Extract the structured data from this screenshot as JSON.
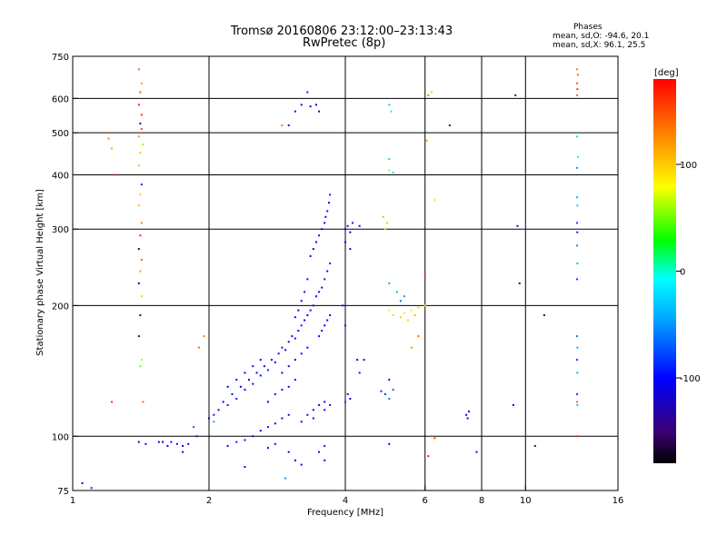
{
  "header": {
    "title_line1": "Tromsø 20160806 23:12:00–23:13:43",
    "title_line2": "RwPretec (8p)",
    "phases_title": "Phases",
    "phases_o": "mean, sd,O:  -94.6, 20.1",
    "phases_x": "mean, sd,X:  96.1, 25.5"
  },
  "chart_data": {
    "type": "scatter",
    "xlabel": "Frequency [MHz]",
    "ylabel": "Stationary phase Virtual Height [km]",
    "x_scale": "log",
    "y_scale": "log",
    "xlim": [
      1,
      16
    ],
    "ylim": [
      75,
      750
    ],
    "x_ticks": [
      1,
      2,
      4,
      6,
      8,
      10,
      16
    ],
    "x_tick_labels": [
      "1",
      "2",
      "4",
      "6",
      "8",
      "10",
      "16"
    ],
    "y_ticks": [
      75,
      100,
      200,
      300,
      400,
      500,
      600,
      750
    ],
    "y_tick_labels": [
      "75",
      "100",
      "200",
      "300",
      "400",
      "500",
      "600",
      "750"
    ],
    "v_gridlines_mhz": [
      2,
      4,
      6,
      8,
      10
    ],
    "h_gridlines_km": [
      100,
      200,
      300,
      400,
      500,
      600
    ],
    "colorbar": {
      "label": "[deg]",
      "range": [
        -180,
        180
      ],
      "ticks": [
        100,
        0,
        -100
      ],
      "tick_labels": [
        "100",
        "0",
        "-100"
      ],
      "colors": [
        "#000000",
        "#3a0070",
        "#0000ff",
        "#00aaff",
        "#00ffff",
        "#00ff00",
        "#ffff00",
        "#ff8000",
        "#ff0000"
      ]
    },
    "series": [
      {
        "points": [
          [
            1.05,
            78,
            -100
          ],
          [
            1.1,
            76,
            -90
          ],
          [
            1.4,
            97,
            -105
          ],
          [
            1.45,
            96,
            -100
          ],
          [
            1.55,
            97,
            -100
          ],
          [
            1.58,
            97,
            -110
          ],
          [
            1.62,
            95,
            -100
          ],
          [
            1.65,
            97,
            -95
          ],
          [
            1.7,
            96,
            -100
          ],
          [
            1.75,
            95,
            -105
          ],
          [
            1.8,
            96,
            -100
          ],
          [
            1.88,
            100,
            -95
          ],
          [
            1.85,
            105,
            -70
          ],
          [
            2.0,
            110,
            -110
          ],
          [
            2.05,
            112,
            -90
          ],
          [
            2.1,
            115,
            -100
          ],
          [
            2.15,
            120,
            -100
          ],
          [
            2.2,
            118,
            -95
          ],
          [
            2.25,
            125,
            -100
          ],
          [
            2.3,
            122,
            -90
          ],
          [
            2.35,
            130,
            -100
          ],
          [
            2.4,
            128,
            -95
          ],
          [
            2.45,
            135,
            -100
          ],
          [
            2.5,
            132,
            -110
          ],
          [
            2.55,
            140,
            -100
          ],
          [
            2.6,
            138,
            -95
          ],
          [
            2.65,
            145,
            -100
          ],
          [
            2.7,
            142,
            -90
          ],
          [
            2.75,
            150,
            -100
          ],
          [
            2.8,
            148,
            -105
          ],
          [
            2.85,
            155,
            -100
          ],
          [
            2.9,
            160,
            -95
          ],
          [
            2.95,
            158,
            -100
          ],
          [
            3.0,
            165,
            -110
          ],
          [
            3.05,
            170,
            -100
          ],
          [
            3.1,
            168,
            -95
          ],
          [
            3.15,
            175,
            -100
          ],
          [
            3.2,
            180,
            -90
          ],
          [
            3.25,
            185,
            -100
          ],
          [
            3.3,
            190,
            -105
          ],
          [
            3.35,
            195,
            -100
          ],
          [
            3.4,
            200,
            -95
          ],
          [
            3.45,
            210,
            -100
          ],
          [
            3.5,
            215,
            -110
          ],
          [
            3.55,
            220,
            -100
          ],
          [
            3.6,
            230,
            -95
          ],
          [
            3.65,
            240,
            -100
          ],
          [
            3.7,
            250,
            -90
          ],
          [
            3.35,
            260,
            -100
          ],
          [
            3.4,
            270,
            -105
          ],
          [
            3.45,
            280,
            -100
          ],
          [
            3.5,
            290,
            -95
          ],
          [
            3.55,
            300,
            -100
          ],
          [
            3.6,
            310,
            -110
          ],
          [
            3.62,
            320,
            -100
          ],
          [
            3.65,
            330,
            -95
          ],
          [
            3.68,
            345,
            -100
          ],
          [
            3.7,
            360,
            -90
          ],
          [
            3.3,
            230,
            -100
          ],
          [
            3.25,
            215,
            -95
          ],
          [
            3.2,
            205,
            -100
          ],
          [
            3.15,
            195,
            -110
          ],
          [
            3.1,
            188,
            -100
          ],
          [
            3.5,
            170,
            -100
          ],
          [
            3.55,
            175,
            -95
          ],
          [
            3.6,
            180,
            -100
          ],
          [
            3.65,
            185,
            -110
          ],
          [
            3.7,
            190,
            -100
          ],
          [
            3.3,
            160,
            -100
          ],
          [
            3.2,
            155,
            -95
          ],
          [
            3.1,
            150,
            -100
          ],
          [
            3.0,
            145,
            -110
          ],
          [
            2.9,
            140,
            -100
          ],
          [
            2.6,
            150,
            -100
          ],
          [
            2.5,
            145,
            -95
          ],
          [
            2.4,
            140,
            -100
          ],
          [
            2.3,
            135,
            -110
          ],
          [
            2.2,
            130,
            -100
          ],
          [
            2.7,
            120,
            -100
          ],
          [
            2.8,
            125,
            -95
          ],
          [
            2.9,
            128,
            -100
          ],
          [
            3.0,
            130,
            -110
          ],
          [
            3.1,
            135,
            -100
          ],
          [
            2.6,
            103,
            -100
          ],
          [
            2.7,
            105,
            -95
          ],
          [
            2.8,
            107,
            -100
          ],
          [
            2.9,
            110,
            -110
          ],
          [
            3.0,
            112,
            -100
          ],
          [
            3.2,
            108,
            -100
          ],
          [
            3.3,
            112,
            -95
          ],
          [
            3.4,
            115,
            -100
          ],
          [
            3.5,
            118,
            -110
          ],
          [
            3.6,
            120,
            -100
          ],
          [
            3.7,
            118,
            -95
          ],
          [
            3.4,
            110,
            -100
          ],
          [
            3.6,
            115,
            -105
          ],
          [
            2.5,
            100,
            -100
          ],
          [
            2.4,
            98,
            -95
          ],
          [
            2.2,
            95,
            -100
          ],
          [
            2.3,
            97,
            -90
          ],
          [
            2.7,
            94,
            -100
          ],
          [
            2.8,
            96,
            -110
          ],
          [
            3.0,
            92,
            -100
          ],
          [
            3.5,
            92,
            -100
          ],
          [
            3.6,
            95,
            -95
          ],
          [
            3.2,
            86,
            -100
          ],
          [
            3.1,
            88,
            -110
          ],
          [
            2.4,
            85,
            -100
          ],
          [
            2.95,
            80,
            -50
          ],
          [
            3.6,
            88,
            -105
          ],
          [
            4.0,
            120,
            -80
          ],
          [
            4.05,
            125,
            -90
          ],
          [
            4.1,
            122,
            -100
          ],
          [
            4.0,
            300,
            -100
          ],
          [
            4.05,
            305,
            -95
          ],
          [
            4.1,
            295,
            -100
          ],
          [
            4.3,
            305,
            -110
          ],
          [
            4.0,
            280,
            -100
          ],
          [
            4.15,
            310,
            -90
          ],
          [
            4.1,
            270,
            -100
          ],
          [
            4.25,
            150,
            -100
          ],
          [
            4.0,
            180,
            -90
          ],
          [
            3.95,
            200,
            -95
          ],
          [
            4.4,
            150,
            -100
          ],
          [
            4.3,
            140,
            -95
          ],
          [
            4.9,
            125,
            -80
          ],
          [
            5.0,
            122,
            -60
          ],
          [
            5.1,
            128,
            -70
          ],
          [
            4.8,
            127,
            -90
          ],
          [
            5.0,
            135,
            -100
          ],
          [
            5.2,
            215,
            -40
          ],
          [
            5.4,
            210,
            -50
          ],
          [
            5.3,
            205,
            -60
          ],
          [
            5.0,
            225,
            -40
          ],
          [
            5.0,
            195,
            90
          ],
          [
            5.1,
            190,
            95
          ],
          [
            5.3,
            188,
            100
          ],
          [
            5.4,
            192,
            90
          ],
          [
            5.6,
            195,
            85
          ],
          [
            5.8,
            198,
            100
          ],
          [
            6.0,
            200,
            90
          ],
          [
            5.5,
            185,
            95
          ],
          [
            5.7,
            190,
            110
          ],
          [
            5.8,
            170,
            140
          ],
          [
            5.6,
            160,
            120
          ],
          [
            4.9,
            300,
            100
          ],
          [
            4.95,
            310,
            105
          ],
          [
            4.85,
            320,
            110
          ],
          [
            5.0,
            410,
            100
          ],
          [
            5.1,
            405,
            -20
          ],
          [
            5.0,
            435,
            -20
          ],
          [
            5.0,
            580,
            -30
          ],
          [
            5.05,
            560,
            -10
          ],
          [
            5.0,
            96,
            -100
          ],
          [
            6.2,
            100,
            150
          ],
          [
            6.1,
            90,
            170
          ],
          [
            6.3,
            99,
            150
          ],
          [
            6.05,
            480,
            120
          ],
          [
            6.1,
            610,
            130
          ],
          [
            6.2,
            620,
            60
          ],
          [
            6.3,
            350,
            90
          ],
          [
            6.0,
            235,
            160
          ],
          [
            6.8,
            520,
            -140
          ],
          [
            7.4,
            112,
            -110
          ],
          [
            7.5,
            114,
            -100
          ],
          [
            7.45,
            110,
            -120
          ],
          [
            7.8,
            92,
            -100
          ],
          [
            9.5,
            610,
            -130
          ],
          [
            9.6,
            305,
            -120
          ],
          [
            9.7,
            225,
            -150
          ],
          [
            9.4,
            118,
            -100
          ],
          [
            10.5,
            95,
            -150
          ],
          [
            11.0,
            190,
            -150
          ],
          [
            1.2,
            485,
            130
          ],
          [
            1.22,
            460,
            110
          ],
          [
            1.24,
            400,
            160
          ],
          [
            1.22,
            120,
            160
          ],
          [
            1.4,
            700,
            140
          ],
          [
            1.42,
            650,
            120
          ],
          [
            1.41,
            620,
            150
          ],
          [
            1.4,
            580,
            170
          ],
          [
            1.42,
            550,
            160
          ],
          [
            1.41,
            525,
            -140
          ],
          [
            1.42,
            510,
            150
          ],
          [
            1.4,
            490,
            120
          ],
          [
            1.43,
            470,
            60
          ],
          [
            1.41,
            450,
            100
          ],
          [
            1.4,
            420,
            110
          ],
          [
            1.42,
            380,
            -90
          ],
          [
            1.41,
            360,
            100
          ],
          [
            1.4,
            340,
            110
          ],
          [
            1.42,
            310,
            130
          ],
          [
            1.41,
            290,
            170
          ],
          [
            1.4,
            270,
            -160
          ],
          [
            1.42,
            255,
            140
          ],
          [
            1.41,
            240,
            120
          ],
          [
            1.4,
            225,
            -110
          ],
          [
            1.42,
            210,
            100
          ],
          [
            1.41,
            190,
            -140
          ],
          [
            1.4,
            170,
            -160
          ],
          [
            1.42,
            150,
            60
          ],
          [
            1.41,
            145,
            50
          ],
          [
            1.43,
            120,
            140
          ],
          [
            13.0,
            700,
            130
          ],
          [
            13.05,
            680,
            140
          ],
          [
            13.0,
            650,
            150
          ],
          [
            13.02,
            630,
            160
          ],
          [
            13.0,
            610,
            140
          ],
          [
            13.0,
            490,
            -20
          ],
          [
            13.05,
            440,
            -10
          ],
          [
            13.0,
            415,
            -50
          ],
          [
            13.0,
            355,
            -40
          ],
          [
            13.02,
            340,
            -30
          ],
          [
            13.0,
            310,
            -80
          ],
          [
            13.01,
            295,
            -90
          ],
          [
            13.0,
            275,
            -50
          ],
          [
            13.02,
            250,
            -40
          ],
          [
            13.0,
            230,
            -80
          ],
          [
            13.0,
            170,
            -60
          ],
          [
            13.02,
            160,
            -40
          ],
          [
            13.0,
            150,
            -80
          ],
          [
            13.01,
            140,
            -40
          ],
          [
            13.0,
            125,
            -80
          ],
          [
            13.0,
            120,
            140
          ],
          [
            13.02,
            118,
            -30
          ],
          [
            13.0,
            100,
            160
          ],
          [
            3.45,
            580,
            -110
          ],
          [
            3.5,
            560,
            -100
          ],
          [
            3.3,
            620,
            -90
          ],
          [
            3.2,
            580,
            -100
          ],
          [
            3.1,
            560,
            -95
          ],
          [
            3.0,
            520,
            -100
          ],
          [
            2.9,
            520,
            130
          ],
          [
            3.35,
            575,
            -110
          ],
          [
            1.95,
            170,
            130
          ],
          [
            1.9,
            160,
            140
          ],
          [
            2.05,
            108,
            -40
          ],
          [
            1.75,
            92,
            -100
          ]
        ]
      }
    ]
  }
}
